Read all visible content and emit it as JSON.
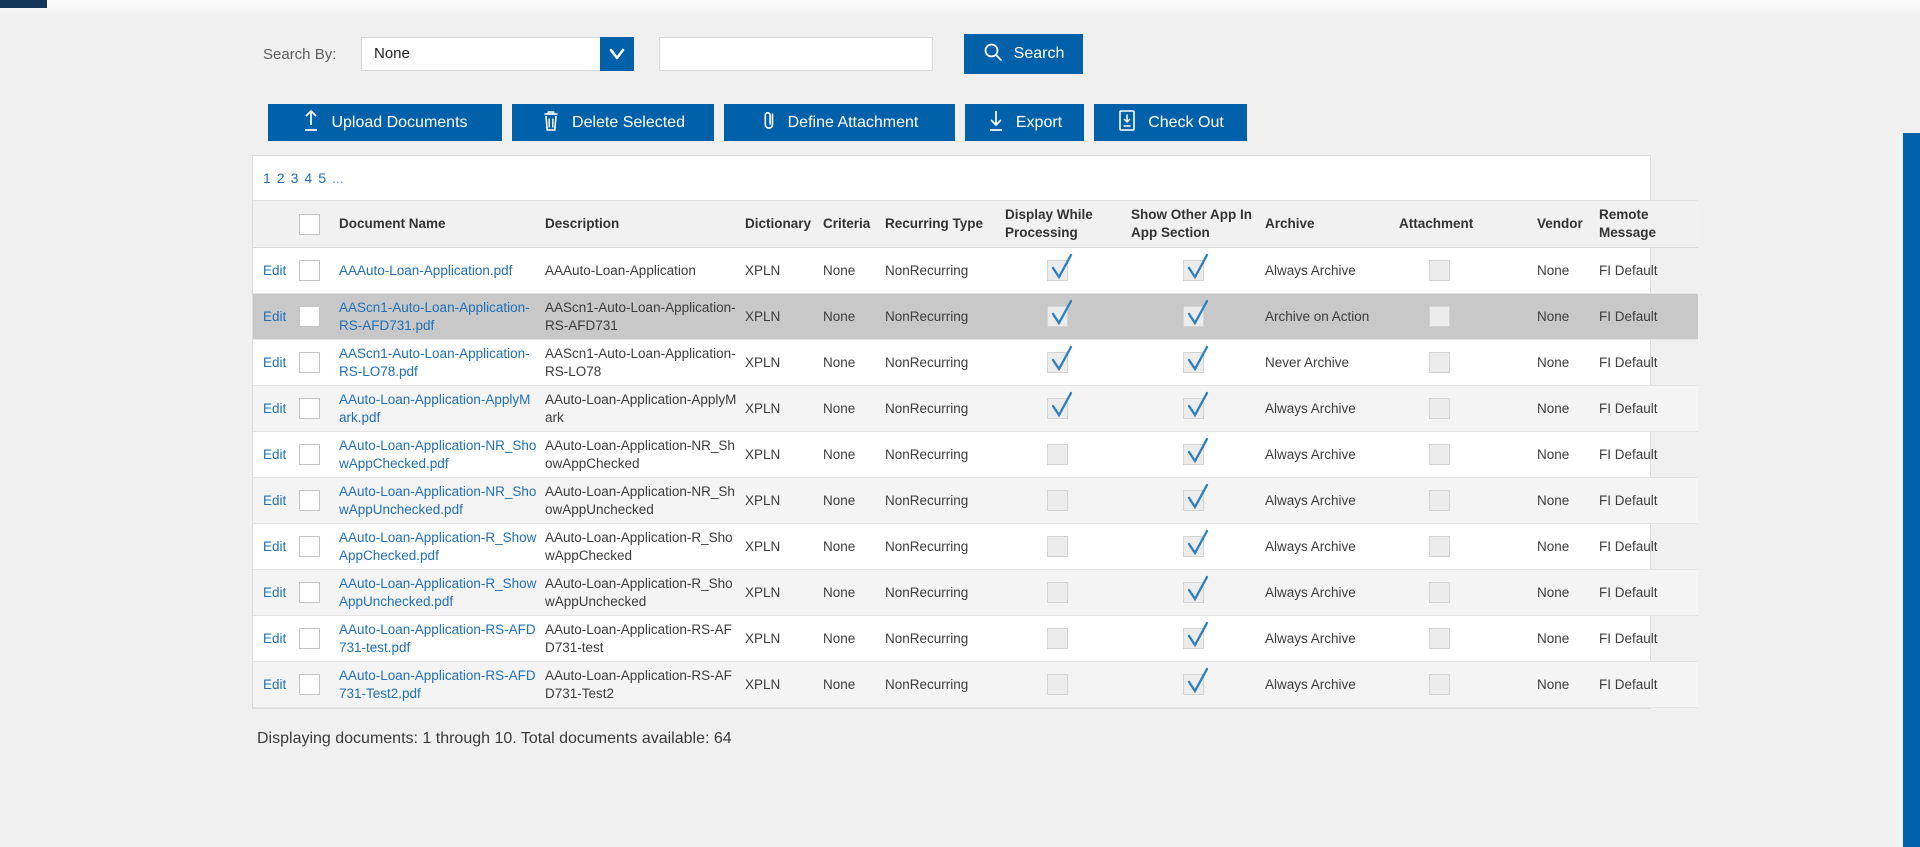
{
  "search": {
    "label": "Search By:",
    "dropdown_value": "None",
    "input_value": "",
    "button_label": "Search"
  },
  "toolbar": {
    "buttons": [
      {
        "label": "Upload Documents",
        "icon": "upload-icon"
      },
      {
        "label": "Delete Selected",
        "icon": "trash-icon"
      },
      {
        "label": "Define Attachment",
        "icon": "paperclip-icon"
      },
      {
        "label": "Export",
        "icon": "export-icon"
      },
      {
        "label": "Check Out",
        "icon": "check-out-icon"
      }
    ]
  },
  "pagination": {
    "pages": [
      "1",
      "2",
      "3",
      "4",
      "5",
      "..."
    ]
  },
  "table": {
    "edit_label": "Edit",
    "columns": [
      "",
      "",
      "Document Name",
      "Description",
      "Dictionary",
      "Criteria",
      "Recurring Type",
      "Display While Processing",
      "Show Other App In App Section",
      "Archive",
      "Attachment",
      "Vendor",
      "Remote Message"
    ],
    "rows": [
      {
        "edit": "Edit",
        "document_name": "AAAuto-Loan-Application.pdf",
        "description": "AAAuto-Loan-Application",
        "dictionary": "XPLN",
        "criteria": "None",
        "recurring_type": "NonRecurring",
        "display_while_processing": true,
        "show_other_app": true,
        "archive": "Always Archive",
        "attachment": false,
        "vendor": "None",
        "remote_message": "FI Default",
        "row_checkbox": false,
        "shade": "white"
      },
      {
        "edit": "Edit",
        "document_name": "AAScn1-Auto-Loan-Application-RS-AFD731.pdf",
        "description": "AAScn1-Auto-Loan-Application-RS-AFD731",
        "dictionary": "XPLN",
        "criteria": "None",
        "recurring_type": "NonRecurring",
        "display_while_processing": true,
        "show_other_app": true,
        "archive": "Archive on Action",
        "attachment": false,
        "vendor": "None",
        "remote_message": "FI Default",
        "row_checkbox": false,
        "shade": "selected"
      },
      {
        "edit": "Edit",
        "document_name": "AAScn1-Auto-Loan-Application-RS-LO78.pdf",
        "description": "AAScn1-Auto-Loan-Application-RS-LO78",
        "dictionary": "XPLN",
        "criteria": "None",
        "recurring_type": "NonRecurring",
        "display_while_processing": true,
        "show_other_app": true,
        "archive": "Never Archive",
        "attachment": false,
        "vendor": "None",
        "remote_message": "FI Default",
        "row_checkbox": false,
        "shade": "white"
      },
      {
        "edit": "Edit",
        "document_name": "AAuto-Loan-Application-ApplyMark.pdf",
        "description": "AAuto-Loan-Application-ApplyMark",
        "dictionary": "XPLN",
        "criteria": "None",
        "recurring_type": "NonRecurring",
        "display_while_processing": true,
        "show_other_app": true,
        "archive": "Always Archive",
        "attachment": false,
        "vendor": "None",
        "remote_message": "FI Default",
        "row_checkbox": false,
        "shade": "alt"
      },
      {
        "edit": "Edit",
        "document_name": "AAuto-Loan-Application-NR_ShowAppChecked.pdf",
        "description": "AAuto-Loan-Application-NR_ShowAppChecked",
        "dictionary": "XPLN",
        "criteria": "None",
        "recurring_type": "NonRecurring",
        "display_while_processing": false,
        "show_other_app": true,
        "archive": "Always Archive",
        "attachment": false,
        "vendor": "None",
        "remote_message": "FI Default",
        "row_checkbox": false,
        "shade": "white"
      },
      {
        "edit": "Edit",
        "document_name": "AAuto-Loan-Application-NR_ShowAppUnchecked.pdf",
        "description": "AAuto-Loan-Application-NR_ShowAppUnchecked",
        "dictionary": "XPLN",
        "criteria": "None",
        "recurring_type": "NonRecurring",
        "display_while_processing": false,
        "show_other_app": true,
        "archive": "Always Archive",
        "attachment": false,
        "vendor": "None",
        "remote_message": "FI Default",
        "row_checkbox": false,
        "shade": "alt"
      },
      {
        "edit": "Edit",
        "document_name": "AAuto-Loan-Application-R_ShowAppChecked.pdf",
        "description": "AAuto-Loan-Application-R_ShowAppChecked",
        "dictionary": "XPLN",
        "criteria": "None",
        "recurring_type": "NonRecurring",
        "display_while_processing": false,
        "show_other_app": true,
        "archive": "Always Archive",
        "attachment": false,
        "vendor": "None",
        "remote_message": "FI Default",
        "row_checkbox": false,
        "shade": "white"
      },
      {
        "edit": "Edit",
        "document_name": "AAuto-Loan-Application-R_ShowAppUnchecked.pdf",
        "description": "AAuto-Loan-Application-R_ShowAppUnchecked",
        "dictionary": "XPLN",
        "criteria": "None",
        "recurring_type": "NonRecurring",
        "display_while_processing": false,
        "show_other_app": true,
        "archive": "Always Archive",
        "attachment": false,
        "vendor": "None",
        "remote_message": "FI Default",
        "row_checkbox": false,
        "shade": "alt"
      },
      {
        "edit": "Edit",
        "document_name": "AAuto-Loan-Application-RS-AFD731-test.pdf",
        "description": "AAuto-Loan-Application-RS-AFD731-test",
        "dictionary": "XPLN",
        "criteria": "None",
        "recurring_type": "NonRecurring",
        "display_while_processing": false,
        "show_other_app": true,
        "archive": "Always Archive",
        "attachment": false,
        "vendor": "None",
        "remote_message": "FI Default",
        "row_checkbox": false,
        "shade": "white"
      },
      {
        "edit": "Edit",
        "document_name": "AAuto-Loan-Application-RS-AFD731-Test2.pdf",
        "description": "AAuto-Loan-Application-RS-AFD731-Test2",
        "dictionary": "XPLN",
        "criteria": "None",
        "recurring_type": "NonRecurring",
        "display_while_processing": false,
        "show_other_app": true,
        "archive": "Always Archive",
        "attachment": false,
        "vendor": "None",
        "remote_message": "FI Default",
        "row_checkbox": false,
        "shade": "alt"
      }
    ]
  },
  "footer": {
    "summary": "Displaying documents: 1 through 10. Total documents available: 64"
  },
  "colors": {
    "primary_blue": "#0060a9",
    "link_blue": "#2170b8",
    "check_blue": "#2b7fc0",
    "selected_row": "#c8c8c8",
    "alt_row": "#f4f4f4",
    "header_bg": "#f1f1f1",
    "page_bg": "#f0f0f0",
    "corner_accent": "#14365a"
  }
}
